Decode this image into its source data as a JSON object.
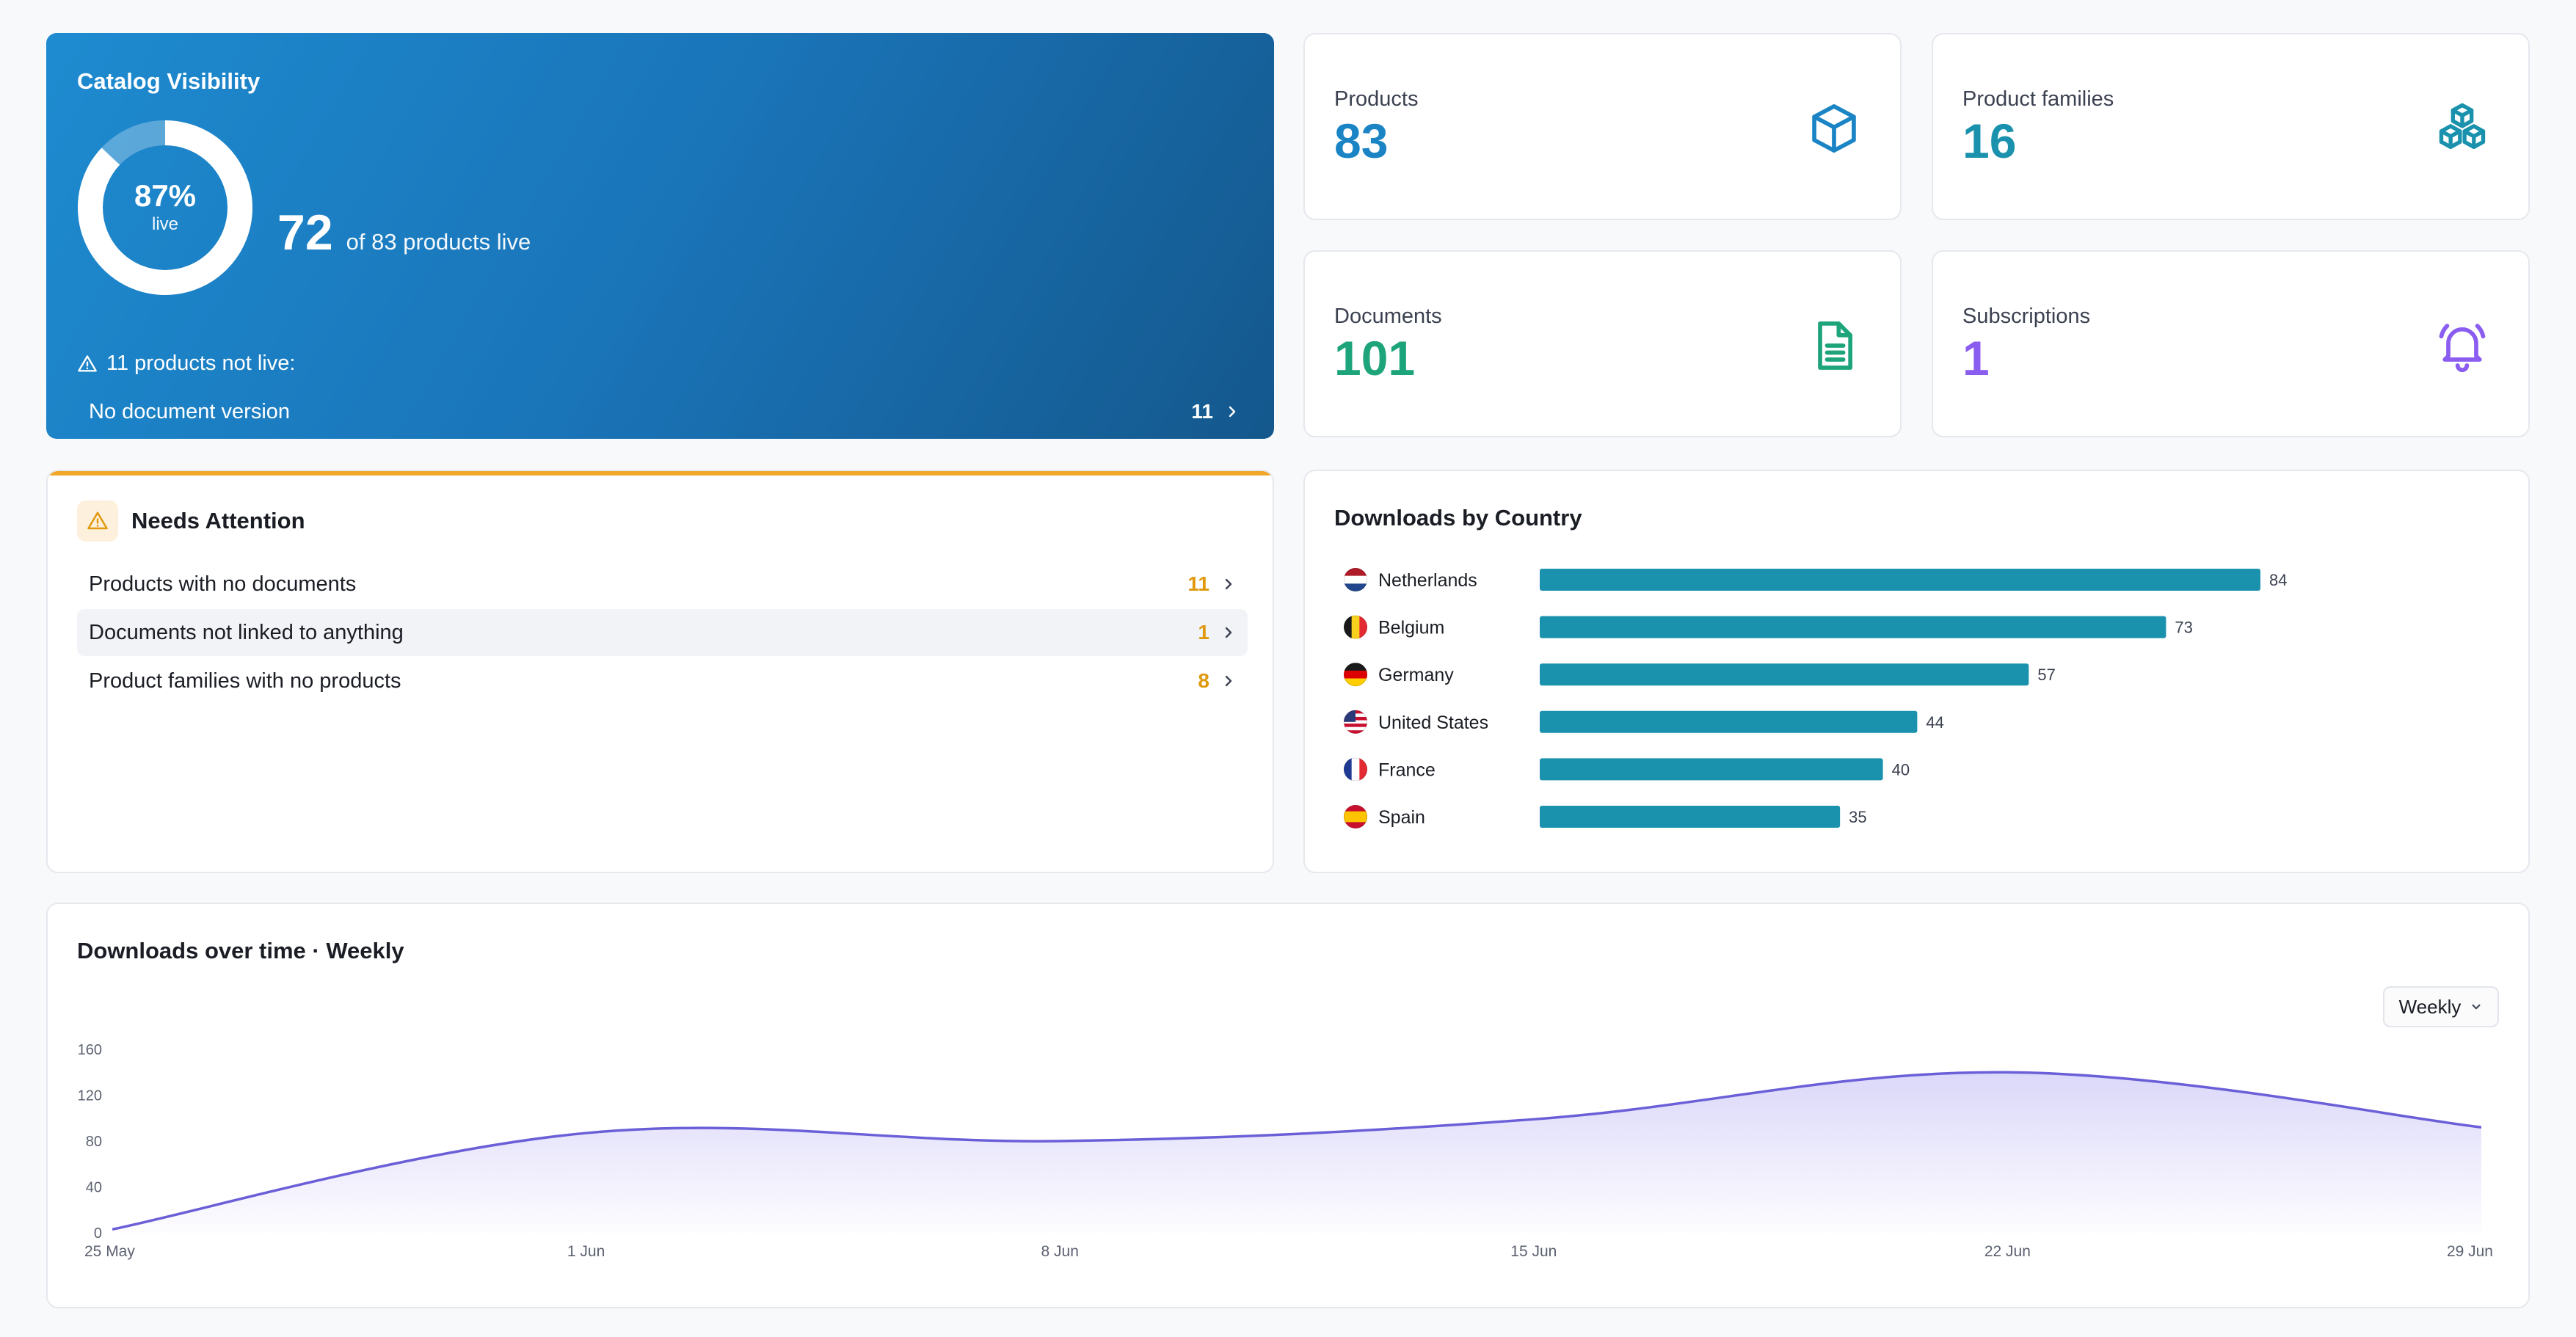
{
  "colors": {
    "accent_blue": "#1a74b8",
    "teal": "#1a91ad",
    "green": "#1ea47a",
    "purple": "#8a5cf0",
    "warning": "#e0980e",
    "bar": "#1a91ad",
    "line": "#6b5fd8"
  },
  "visibility": {
    "title": "Catalog Visibility",
    "percent_label": "87%",
    "percent_value": 0.87,
    "percent_sub": "live",
    "live_count": "72",
    "live_text": "of 83 products live",
    "not_live_text": "11 products not live:",
    "rows": [
      {
        "label": "No document version",
        "count": "11"
      }
    ]
  },
  "stats": [
    {
      "label": "Products",
      "value": "83",
      "icon": "cube-icon",
      "color": "#1a84c4"
    },
    {
      "label": "Product families",
      "value": "16",
      "icon": "cubes-icon",
      "color": "#1a91ad"
    },
    {
      "label": "Documents",
      "value": "101",
      "icon": "document-icon",
      "color": "#1ea47a"
    },
    {
      "label": "Subscriptions",
      "value": "1",
      "icon": "bell-ring-icon",
      "color": "#8a5cf0"
    }
  ],
  "attention": {
    "title": "Needs Attention",
    "icon": "warning-triangle-icon",
    "items": [
      {
        "label": "Products with no documents",
        "count": "11"
      },
      {
        "label": "Documents not linked to anything",
        "count": "1"
      },
      {
        "label": "Product families with no products",
        "count": "8"
      }
    ]
  },
  "country": {
    "title": "Downloads by Country",
    "chart_data": {
      "type": "bar",
      "categories": [
        "Netherlands",
        "Belgium",
        "Germany",
        "United States",
        "France",
        "Spain"
      ],
      "values": [
        84,
        73,
        57,
        44,
        40,
        35
      ],
      "flags": [
        "flag-nl-icon",
        "flag-be-icon",
        "flag-de-icon",
        "flag-us-icon",
        "flag-fr-icon",
        "flag-es-icon"
      ],
      "xlim": [
        0,
        84
      ]
    }
  },
  "time": {
    "title": "Downloads over time · Weekly",
    "select_value": "Weekly",
    "chart_data": {
      "type": "area",
      "x": [
        "25 May",
        "1 Jun",
        "8 Jun",
        "15 Jun",
        "22 Jun",
        "29 Jun"
      ],
      "series": [
        {
          "values": [
            3,
            87,
            80,
            99,
            140,
            92
          ]
        }
      ],
      "y_ticks": [
        "0",
        "40",
        "80",
        "120",
        "160"
      ],
      "ylim": [
        0,
        160
      ]
    }
  }
}
